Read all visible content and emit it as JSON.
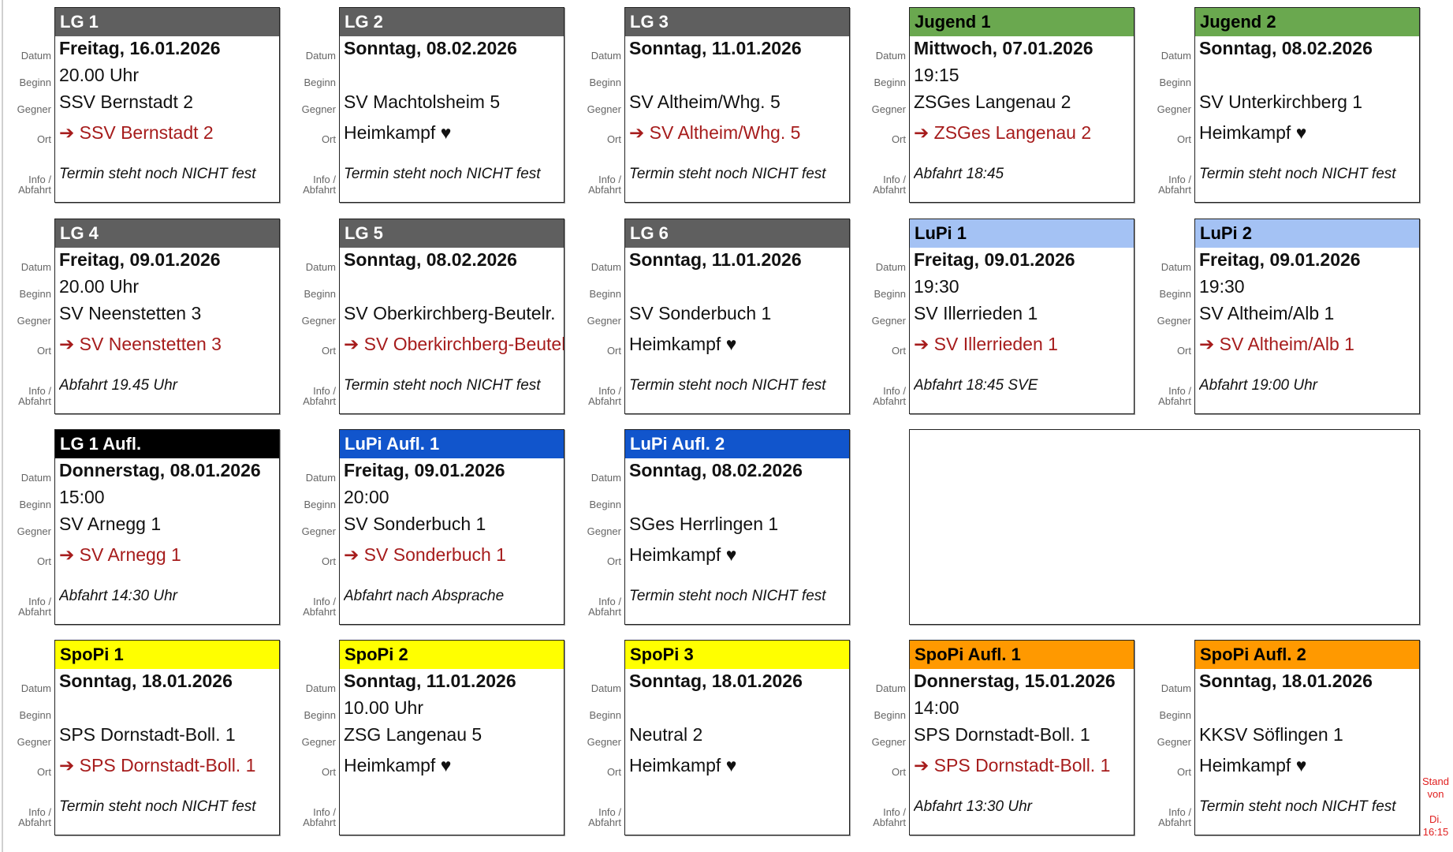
{
  "row_labels": {
    "datum": "Datum",
    "beginn": "Beginn",
    "gegner": "Gegner",
    "ort": "Ort",
    "info_1": "Info /",
    "info_2": "Abfahrt"
  },
  "colors": {
    "away_text": "#a61c1c",
    "stand_text": "#e02020"
  },
  "cards": [
    {
      "title": "LG 1",
      "header_bg": "#5f5f5f",
      "header_fg": "#ffffff",
      "datum": "Freitag, 16.01.2026",
      "beginn": "20.00 Uhr",
      "gegner": "SSV Bernstadt 2",
      "ort": "➔ SSV Bernstadt 2",
      "away": true,
      "info": "Termin steht noch NICHT fest"
    },
    {
      "title": "LG 2",
      "header_bg": "#5f5f5f",
      "header_fg": "#ffffff",
      "datum": "Sonntag, 08.02.2026",
      "beginn": "",
      "gegner": "SV Machtolsheim 5",
      "ort": "Heimkampf ♥",
      "away": false,
      "info": "Termin steht noch NICHT fest"
    },
    {
      "title": "LG 3",
      "header_bg": "#5f5f5f",
      "header_fg": "#ffffff",
      "datum": "Sonntag, 11.01.2026",
      "beginn": "",
      "gegner": "SV Altheim/Whg. 5",
      "ort": "➔ SV Altheim/Whg. 5",
      "away": true,
      "info": "Termin steht noch NICHT fest"
    },
    {
      "title": "Jugend 1",
      "header_bg": "#6aa84f",
      "header_fg": "#000000",
      "datum": "Mittwoch, 07.01.2026",
      "beginn": "19:15",
      "gegner": "ZSGes Langenau 2",
      "ort": "➔ ZSGes Langenau 2",
      "away": true,
      "info": "Abfahrt 18:45"
    },
    {
      "title": "Jugend 2",
      "header_bg": "#6aa84f",
      "header_fg": "#000000",
      "datum": "Sonntag, 08.02.2026",
      "beginn": "",
      "gegner": "SV Unterkirchberg 1",
      "ort": "Heimkampf ♥",
      "away": false,
      "info": "Termin steht noch NICHT fest"
    },
    {
      "title": "LG 4",
      "header_bg": "#5f5f5f",
      "header_fg": "#ffffff",
      "datum": "Freitag, 09.01.2026",
      "beginn": "20.00 Uhr",
      "gegner": "SV Neenstetten 3",
      "ort": "➔ SV Neenstetten 3",
      "away": true,
      "info": "Abfahrt 19.45 Uhr"
    },
    {
      "title": "LG 5",
      "header_bg": "#5f5f5f",
      "header_fg": "#ffffff",
      "datum": "Sonntag, 08.02.2026",
      "beginn": "",
      "gegner": "SV Oberkirchberg-Beutelr.",
      "ort": "➔ SV Oberkirchberg-Beutelr.",
      "away": true,
      "info": "Termin steht noch NICHT fest"
    },
    {
      "title": "LG 6",
      "header_bg": "#5f5f5f",
      "header_fg": "#ffffff",
      "datum": "Sonntag, 11.01.2026",
      "beginn": "",
      "gegner": "SV Sonderbuch 1",
      "ort": "Heimkampf ♥",
      "away": false,
      "info": "Termin steht noch NICHT fest"
    },
    {
      "title": "LuPi 1",
      "header_bg": "#a4c2f4",
      "header_fg": "#000000",
      "datum": "Freitag, 09.01.2026",
      "beginn": "19:30",
      "gegner": "SV Illerrieden 1",
      "ort": "➔ SV Illerrieden 1",
      "away": true,
      "info": "Abfahrt 18:45 SVE"
    },
    {
      "title": "LuPi 2",
      "header_bg": "#a4c2f4",
      "header_fg": "#000000",
      "datum": "Freitag, 09.01.2026",
      "beginn": "19:30",
      "gegner": "SV Altheim/Alb 1",
      "ort": "➔ SV Altheim/Alb 1",
      "away": true,
      "info": "Abfahrt 19:00 Uhr"
    },
    {
      "title": "LG 1 Aufl.",
      "header_bg": "#000000",
      "header_fg": "#ffffff",
      "datum": "Donnerstag, 08.01.2026",
      "beginn": "15:00",
      "gegner": "SV Arnegg 1",
      "ort": "➔ SV Arnegg 1",
      "away": true,
      "info": "Abfahrt 14:30 Uhr"
    },
    {
      "title": "LuPi Aufl. 1",
      "header_bg": "#1155cc",
      "header_fg": "#ffffff",
      "datum": "Freitag, 09.01.2026",
      "beginn": "20:00",
      "gegner": "SV Sonderbuch 1",
      "ort": "➔ SV Sonderbuch 1",
      "away": true,
      "info": "Abfahrt nach Absprache"
    },
    {
      "title": "LuPi Aufl. 2",
      "header_bg": "#1155cc",
      "header_fg": "#ffffff",
      "datum": "Sonntag, 08.02.2026",
      "beginn": "",
      "gegner": "SGes Herrlingen 1",
      "ort": "Heimkampf ♥",
      "away": false,
      "info": "Termin steht noch NICHT fest"
    },
    {
      "title": "SpoPi 1",
      "header_bg": "#ffff00",
      "header_fg": "#000000",
      "datum": "Sonntag, 18.01.2026",
      "beginn": "",
      "gegner": "SPS Dornstadt-Boll. 1",
      "ort": "➔ SPS Dornstadt-Boll. 1",
      "away": true,
      "info": "Termin steht noch NICHT fest"
    },
    {
      "title": "SpoPi 2",
      "header_bg": "#ffff00",
      "header_fg": "#000000",
      "datum": "Sonntag, 11.01.2026",
      "beginn": "10.00 Uhr",
      "gegner": "ZSG Langenau 5",
      "ort": "Heimkampf ♥",
      "away": false,
      "info": ""
    },
    {
      "title": "SpoPi 3",
      "header_bg": "#ffff00",
      "header_fg": "#000000",
      "datum": "Sonntag, 18.01.2026",
      "beginn": "",
      "gegner": "Neutral 2",
      "ort": "Heimkampf ♥",
      "away": false,
      "info": ""
    },
    {
      "title": "SpoPi Aufl. 1",
      "header_bg": "#ff9900",
      "header_fg": "#000000",
      "datum": "Donnerstag, 15.01.2026",
      "beginn": "14:00",
      "gegner": "SPS Dornstadt-Boll. 1",
      "ort": "➔ SPS Dornstadt-Boll. 1",
      "away": true,
      "info": "Abfahrt 13:30 Uhr"
    },
    {
      "title": "SpoPi Aufl. 2",
      "header_bg": "#ff9900",
      "header_fg": "#000000",
      "datum": "Sonntag, 18.01.2026",
      "beginn": "",
      "gegner": "KKSV Söflingen 1",
      "ort": "Heimkampf ♥",
      "away": false,
      "info": "Termin steht noch NICHT fest"
    }
  ],
  "stand": {
    "line1": "Stand",
    "line2": "von",
    "line3": "Di.",
    "line4": "16:15"
  }
}
